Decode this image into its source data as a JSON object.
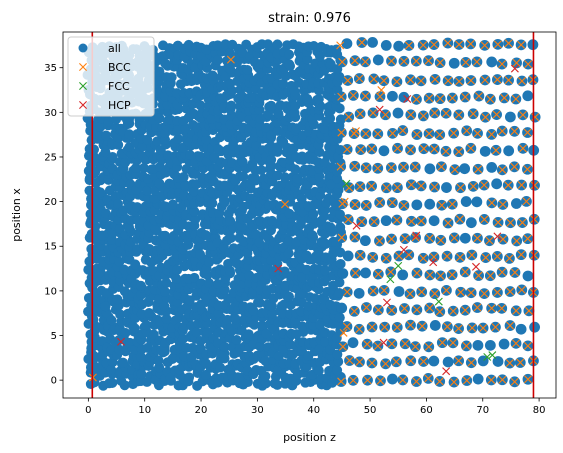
{
  "chart_data": {
    "type": "scatter",
    "title": "strain: 0.976",
    "xlabel": "position z",
    "ylabel": "position x",
    "xlim": [
      -4.5,
      83
    ],
    "ylim": [
      -2,
      39
    ],
    "xticks": [
      0,
      10,
      20,
      30,
      40,
      50,
      60,
      70,
      80
    ],
    "yticks": [
      0,
      5,
      10,
      15,
      20,
      25,
      30,
      35
    ],
    "grid": false,
    "legend_position": "top-left",
    "colors": {
      "all": "#1f77b4",
      "BCC": "#ff7f0e",
      "FCC": "#2ca02c",
      "HCP": "#d62728",
      "boundary": "#cc0000"
    },
    "vertical_lines": [
      0.7,
      79
    ],
    "series": [
      {
        "name": "all",
        "marker": "circle",
        "dense_region": {
          "x": [
            0.3,
            45
          ],
          "y": [
            -0.3,
            37.8
          ]
        },
        "lattice_region": {
          "x": [
            45,
            79.5
          ],
          "y": [
            0,
            37.8
          ],
          "spacing": 2.2
        }
      },
      {
        "name": "BCC",
        "marker": "x",
        "points": [
          [
            25.3,
            35.9
          ],
          [
            34.9,
            19.7
          ],
          [
            45.3,
            5.3
          ],
          [
            45.5,
            20
          ],
          [
            44.7,
            37.5
          ],
          [
            47.5,
            27.9
          ],
          [
            52,
            32.5
          ],
          [
            0.8,
            0.3
          ]
        ],
        "lattice_region": {
          "x": [
            45,
            79.5
          ],
          "y": [
            0,
            37.8
          ],
          "spacing": 2.2
        }
      },
      {
        "name": "FCC",
        "marker": "x",
        "points": [
          [
            45.8,
            22
          ],
          [
            55,
            12.8
          ],
          [
            53.6,
            11.3
          ],
          [
            62.2,
            8.8
          ],
          [
            70.8,
            2.6
          ],
          [
            71.7,
            2.8
          ]
        ]
      },
      {
        "name": "HCP",
        "marker": "x",
        "points": [
          [
            5.8,
            4.3
          ],
          [
            33.7,
            12.5
          ],
          [
            47.6,
            17.3
          ],
          [
            52.4,
            4.2
          ],
          [
            53,
            8.7
          ],
          [
            56,
            14.6
          ],
          [
            58.2,
            16.2
          ],
          [
            56.6,
            31.5
          ],
          [
            61.2,
            13.2
          ],
          [
            63.5,
            1
          ],
          [
            68.8,
            12.7
          ],
          [
            72.6,
            16.1
          ],
          [
            75.7,
            34.9
          ],
          [
            51.7,
            30.3
          ]
        ]
      }
    ]
  }
}
